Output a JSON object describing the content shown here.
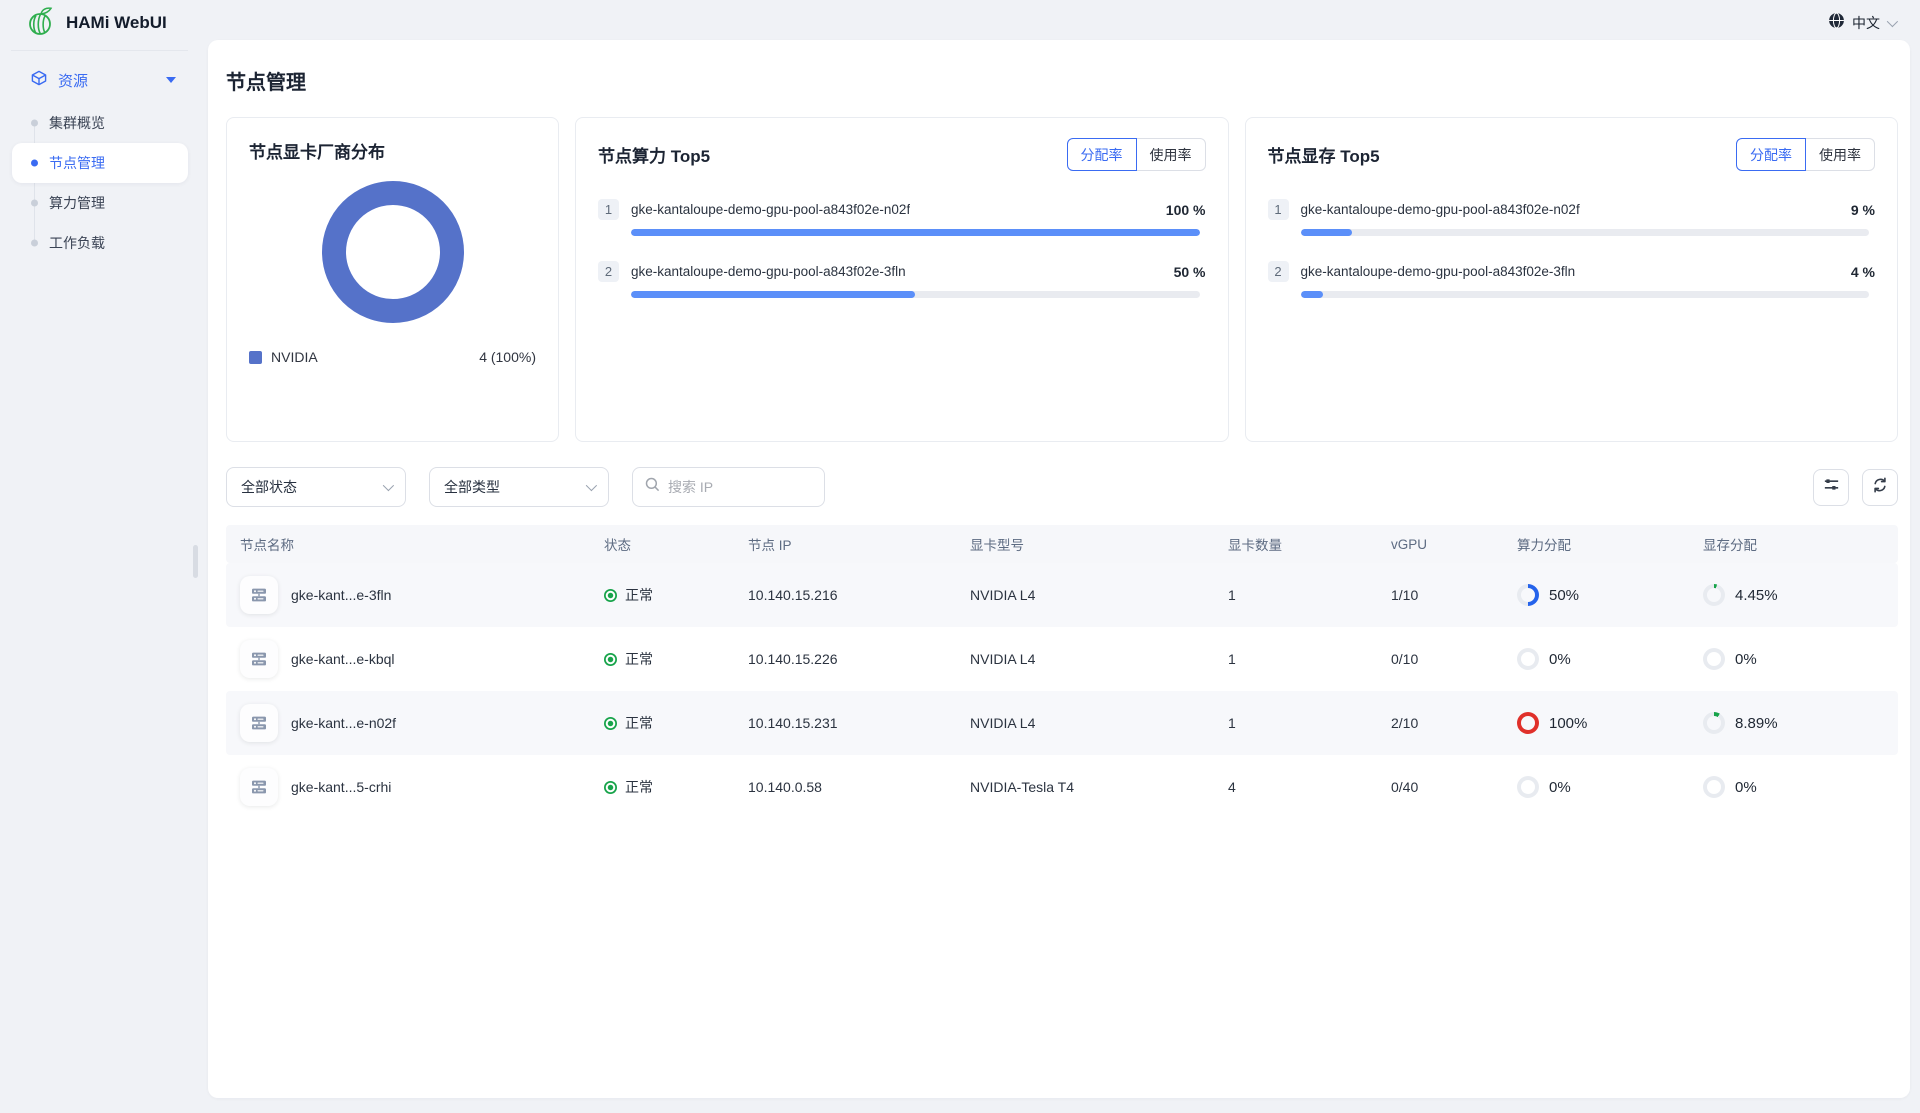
{
  "topbar": {
    "brand": "HAMi WebUI",
    "language": "中文"
  },
  "sidebar": {
    "group_label": "资源",
    "items": [
      {
        "label": "集群概览"
      },
      {
        "label": "节点管理"
      },
      {
        "label": "算力管理"
      },
      {
        "label": "工作负载"
      }
    ]
  },
  "page_title": "节点管理",
  "vendor_card": {
    "title": "节点显卡厂商分布",
    "color": "#5572c9",
    "legend_label": "NVIDIA",
    "legend_value": "4 (100%)"
  },
  "compute_card": {
    "title": "节点算力 Top5",
    "toggle_alloc": "分配率",
    "toggle_usage": "使用率",
    "items": [
      {
        "rank": "1",
        "name": "gke-kantaloupe-demo-gpu-pool-a843f02e-n02f",
        "value": "100 %",
        "percent": 100
      },
      {
        "rank": "2",
        "name": "gke-kantaloupe-demo-gpu-pool-a843f02e-3fln",
        "value": "50 %",
        "percent": 50
      }
    ]
  },
  "memory_card": {
    "title": "节点显存 Top5",
    "toggle_alloc": "分配率",
    "toggle_usage": "使用率",
    "items": [
      {
        "rank": "1",
        "name": "gke-kantaloupe-demo-gpu-pool-a843f02e-n02f",
        "value": "9 %",
        "percent": 9
      },
      {
        "rank": "2",
        "name": "gke-kantaloupe-demo-gpu-pool-a843f02e-3fln",
        "value": "4 %",
        "percent": 4
      }
    ]
  },
  "filters": {
    "status": "全部状态",
    "type": "全部类型",
    "search_placeholder": "搜索 IP"
  },
  "table": {
    "headers": [
      "节点名称",
      "状态",
      "节点 IP",
      "显卡型号",
      "显卡数量",
      "vGPU",
      "算力分配",
      "显存分配"
    ],
    "rows": [
      {
        "name": "gke-kant...e-3fln",
        "status": "正常",
        "ip": "10.140.15.216",
        "model": "NVIDIA L4",
        "count": "1",
        "vgpu": "1/10",
        "power": {
          "label": "50%",
          "percent": 50,
          "color": "#2563eb"
        },
        "mem": {
          "label": "4.45%",
          "percent": 4.45,
          "color": "#17a34a"
        }
      },
      {
        "name": "gke-kant...e-kbql",
        "status": "正常",
        "ip": "10.140.15.226",
        "model": "NVIDIA L4",
        "count": "1",
        "vgpu": "0/10",
        "power": {
          "label": "0%",
          "percent": 0,
          "color": "#e8ebf0"
        },
        "mem": {
          "label": "0%",
          "percent": 0,
          "color": "#e8ebf0"
        }
      },
      {
        "name": "gke-kant...e-n02f",
        "status": "正常",
        "ip": "10.140.15.231",
        "model": "NVIDIA L4",
        "count": "1",
        "vgpu": "2/10",
        "power": {
          "label": "100%",
          "percent": 100,
          "color": "#e0302a"
        },
        "mem": {
          "label": "8.89%",
          "percent": 8.89,
          "color": "#17a34a"
        }
      },
      {
        "name": "gke-kant...5-crhi",
        "status": "正常",
        "ip": "10.140.0.58",
        "model": "NVIDIA-Tesla T4",
        "count": "4",
        "vgpu": "0/40",
        "power": {
          "label": "0%",
          "percent": 0,
          "color": "#e8ebf0"
        },
        "mem": {
          "label": "0%",
          "percent": 0,
          "color": "#e8ebf0"
        }
      }
    ]
  },
  "chart_data": [
    {
      "type": "pie",
      "subtype": "donut",
      "title": "节点显卡厂商分布",
      "labels": [
        "NVIDIA"
      ],
      "values": [
        4
      ],
      "percents": [
        100
      ],
      "colors": [
        "#5572c9"
      ],
      "legend_position": "bottom"
    },
    {
      "type": "bar",
      "orientation": "horizontal",
      "title": "节点算力 Top5",
      "categories": [
        "gke-kantaloupe-demo-gpu-pool-a843f02e-n02f",
        "gke-kantaloupe-demo-gpu-pool-a843f02e-3fln"
      ],
      "values": [
        100,
        50
      ],
      "unit": "%",
      "xlim": [
        0,
        100
      ]
    },
    {
      "type": "bar",
      "orientation": "horizontal",
      "title": "节点显存 Top5",
      "categories": [
        "gke-kantaloupe-demo-gpu-pool-a843f02e-n02f",
        "gke-kantaloupe-demo-gpu-pool-a843f02e-3fln"
      ],
      "values": [
        9,
        4
      ],
      "unit": "%",
      "xlim": [
        0,
        100
      ]
    }
  ]
}
